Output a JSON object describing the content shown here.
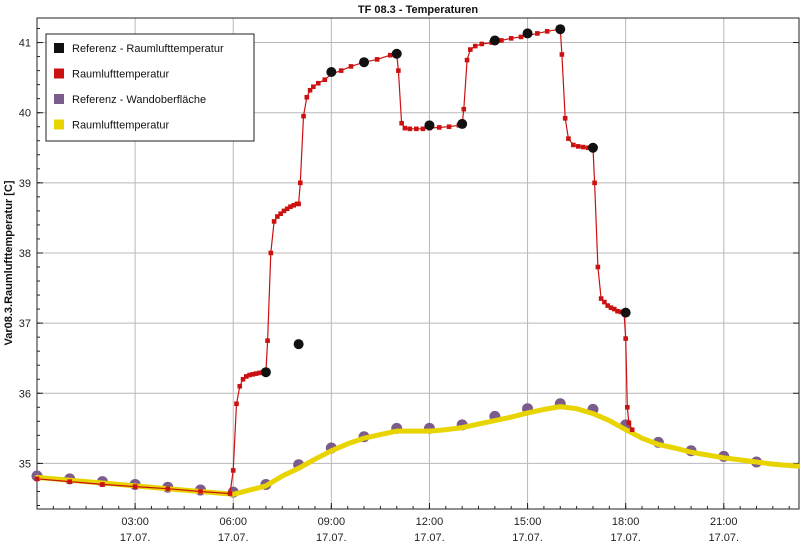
{
  "chart_data": {
    "type": "line",
    "title": "TF 08.3 - Temperaturen",
    "xlabel": "",
    "ylabel": "Var08.3.Raumlufttemperatur [C]",
    "xlim": [
      0.0,
      23.3
    ],
    "ylim": [
      34.35,
      41.35
    ],
    "y_ticks": [
      35,
      36,
      37,
      38,
      39,
      40,
      41
    ],
    "x_ticks": [
      3,
      6,
      9,
      12,
      15,
      18,
      21
    ],
    "x_tick_labels": [
      {
        "time": "03:00",
        "date": "17.07."
      },
      {
        "time": "06:00",
        "date": "17.07."
      },
      {
        "time": "09:00",
        "date": "17.07."
      },
      {
        "time": "12:00",
        "date": "17.07."
      },
      {
        "time": "15:00",
        "date": "17.07."
      },
      {
        "time": "18:00",
        "date": "17.07."
      },
      {
        "time": "21:00",
        "date": "17.07."
      }
    ],
    "grid": true,
    "legend_position": "top-left",
    "series": [
      {
        "name": "Referenz - Raumlufttemperatur",
        "color": "#111111",
        "style": "marker",
        "x": [
          7.0,
          8.0,
          9.0,
          10.0,
          11.0,
          12.0,
          13.0,
          14.0,
          15.0,
          16.0,
          17.0,
          18.0
        ],
        "y": [
          36.3,
          36.7,
          40.58,
          40.72,
          40.84,
          39.82,
          39.84,
          41.03,
          41.13,
          41.19,
          39.5,
          37.15
        ]
      },
      {
        "name": "Raumlufttemperatur",
        "color": "#cc1111",
        "style": "line-square",
        "x": [
          0.0,
          1.0,
          2.0,
          3.0,
          4.0,
          5.0,
          5.9,
          6.0,
          6.1,
          6.2,
          6.3,
          6.4,
          6.5,
          6.6,
          6.7,
          6.8,
          6.9,
          7.0,
          7.05,
          7.15,
          7.25,
          7.35,
          7.45,
          7.55,
          7.65,
          7.75,
          7.85,
          7.95,
          8.0,
          8.05,
          8.15,
          8.25,
          8.35,
          8.45,
          8.6,
          8.8,
          9.0,
          9.3,
          9.6,
          10.0,
          10.4,
          10.8,
          11.0,
          11.05,
          11.15,
          11.25,
          11.4,
          11.6,
          11.8,
          12.0,
          12.3,
          12.6,
          12.9,
          13.0,
          13.05,
          13.15,
          13.25,
          13.4,
          13.6,
          13.9,
          14.2,
          14.5,
          14.8,
          15.0,
          15.3,
          15.6,
          16.0,
          16.05,
          16.15,
          16.25,
          16.4,
          16.55,
          16.7,
          16.85,
          17.0,
          17.05,
          17.15,
          17.25,
          17.35,
          17.45,
          17.55,
          17.65,
          17.75,
          17.85,
          17.95,
          18.0,
          18.05,
          18.1,
          18.2
        ],
        "y": [
          34.78,
          34.74,
          34.7,
          34.67,
          34.64,
          34.6,
          34.57,
          34.9,
          35.85,
          36.1,
          36.2,
          36.24,
          36.26,
          36.27,
          36.28,
          36.29,
          36.3,
          36.3,
          36.75,
          38.0,
          38.45,
          38.52,
          38.56,
          38.6,
          38.63,
          38.66,
          38.68,
          38.7,
          38.7,
          39.0,
          39.95,
          40.22,
          40.32,
          40.37,
          40.42,
          40.47,
          40.55,
          40.6,
          40.66,
          40.72,
          40.76,
          40.82,
          40.84,
          40.6,
          39.85,
          39.78,
          39.77,
          39.77,
          39.77,
          39.78,
          39.79,
          39.8,
          39.82,
          39.84,
          40.05,
          40.75,
          40.9,
          40.95,
          40.98,
          41.0,
          41.03,
          41.06,
          41.08,
          41.1,
          41.13,
          41.16,
          41.19,
          40.83,
          39.92,
          39.63,
          39.54,
          39.52,
          39.51,
          39.5,
          39.5,
          39.0,
          37.8,
          37.35,
          37.3,
          37.25,
          37.22,
          37.2,
          37.17,
          37.16,
          37.15,
          36.78,
          35.8,
          35.58,
          35.48
        ]
      },
      {
        "name": "Referenz - Wandoberfläche",
        "color": "#7b5c8c",
        "style": "marker",
        "x": [
          0.0,
          1.0,
          2.0,
          3.0,
          4.0,
          5.0,
          6.0,
          7.0,
          8.0,
          9.0,
          10.0,
          11.0,
          12.0,
          13.0,
          14.0,
          15.0,
          16.0,
          17.0,
          18.0,
          19.0,
          20.0,
          21.0,
          22.0
        ],
        "y": [
          34.82,
          34.78,
          34.74,
          34.7,
          34.66,
          34.62,
          34.59,
          34.7,
          34.98,
          35.22,
          35.38,
          35.5,
          35.5,
          35.55,
          35.67,
          35.78,
          35.85,
          35.77,
          35.55,
          35.3,
          35.18,
          35.1,
          35.02
        ]
      },
      {
        "name": "Raumlufttemperatur",
        "color": "#e8d400",
        "style": "thick-line",
        "x": [
          0.0,
          1.0,
          2.0,
          3.0,
          4.0,
          5.0,
          6.0,
          6.5,
          7.0,
          7.5,
          8.0,
          8.5,
          9.0,
          9.5,
          10.0,
          10.5,
          11.0,
          11.5,
          12.0,
          12.5,
          13.0,
          13.5,
          14.0,
          14.5,
          15.0,
          15.5,
          16.0,
          16.5,
          17.0,
          17.5,
          18.0,
          18.5,
          19.0,
          19.5,
          20.0,
          20.5,
          21.0,
          21.5,
          22.0,
          22.5,
          23.0,
          23.3
        ],
        "y": [
          34.8,
          34.76,
          34.72,
          34.68,
          34.64,
          34.6,
          34.56,
          34.62,
          34.68,
          34.82,
          34.93,
          35.06,
          35.18,
          35.28,
          35.36,
          35.41,
          35.46,
          35.46,
          35.46,
          35.48,
          35.51,
          35.56,
          35.61,
          35.66,
          35.72,
          35.77,
          35.81,
          35.78,
          35.71,
          35.61,
          35.48,
          35.36,
          35.27,
          35.22,
          35.16,
          35.12,
          35.08,
          35.05,
          35.02,
          34.99,
          34.97,
          34.96
        ]
      }
    ]
  }
}
